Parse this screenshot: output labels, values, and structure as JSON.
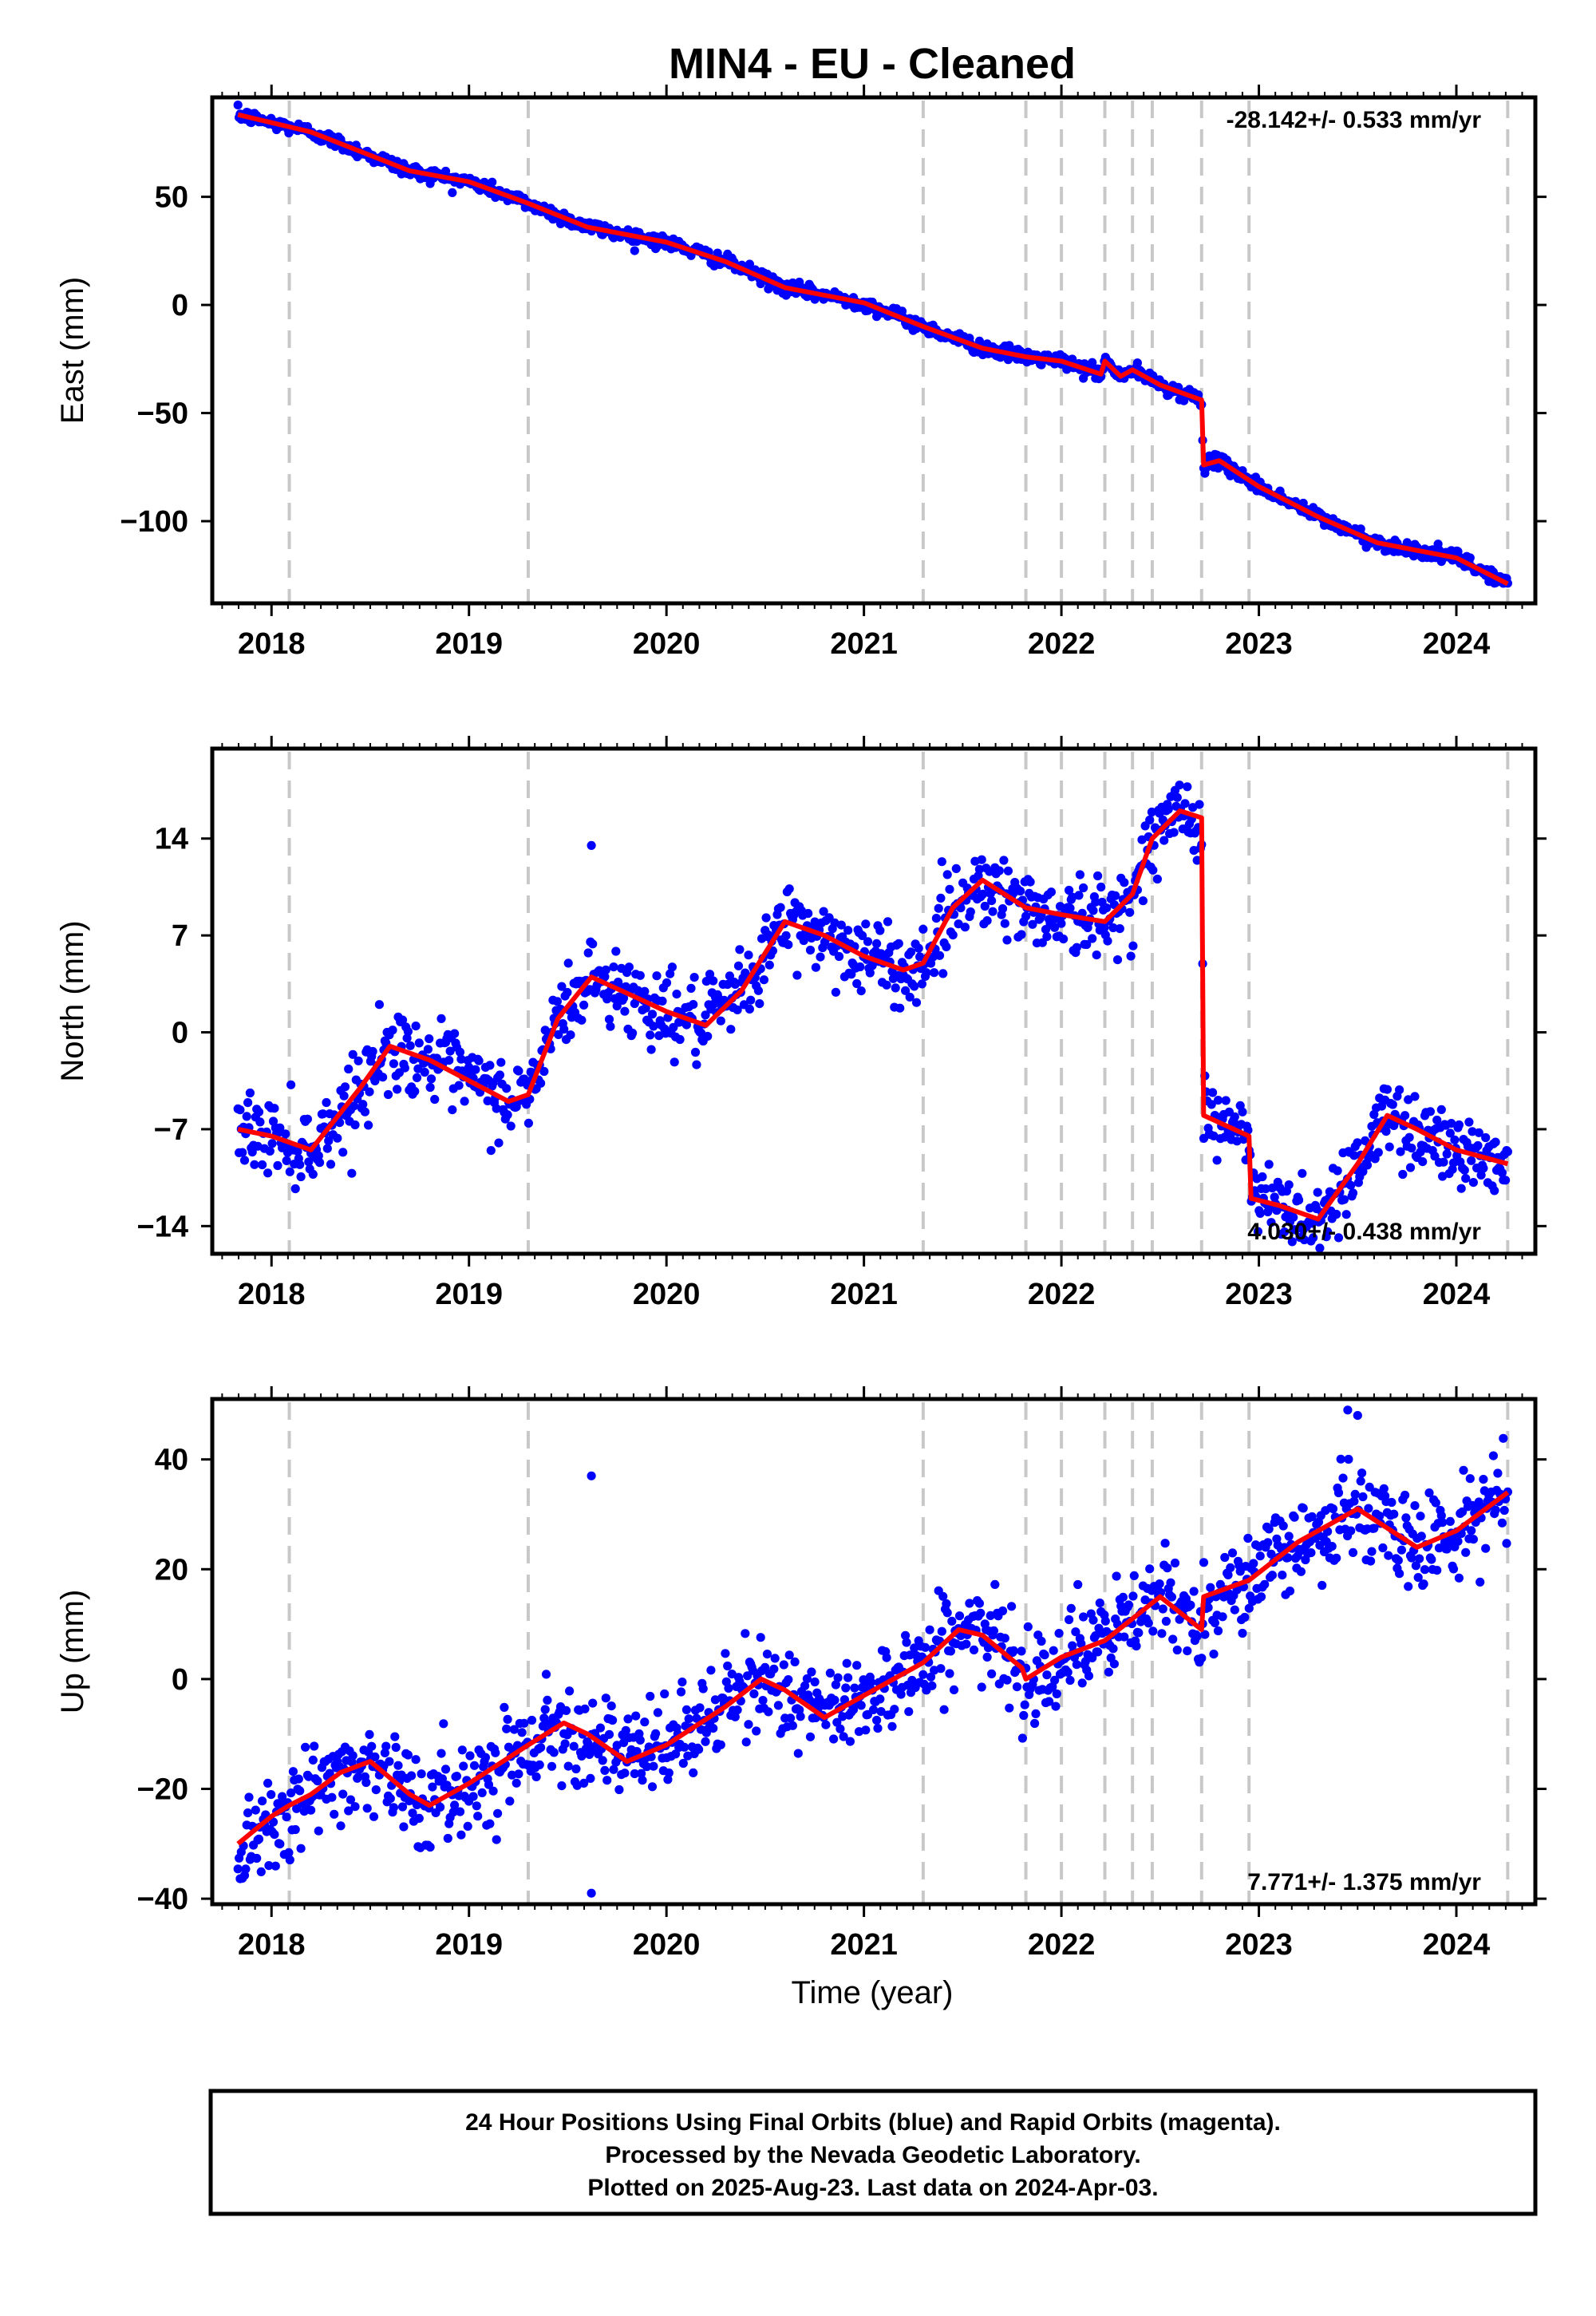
{
  "title": "MIN4  - EU - Cleaned",
  "colors": {
    "points": "#0000ff",
    "fit": "#ff0000",
    "events": "#c8c8c8",
    "frame": "#000000"
  },
  "x_axis": {
    "label": "Time (year)",
    "ticks": [
      2018,
      2019,
      2020,
      2021,
      2022,
      2023,
      2024
    ],
    "range": [
      2017.7,
      2024.4
    ]
  },
  "event_lines": [
    2018.09,
    2019.3,
    2021.3,
    2021.82,
    2022.0,
    2022.22,
    2022.36,
    2022.46,
    2022.71,
    2022.95,
    2024.26
  ],
  "chart_data": [
    {
      "type": "scatter",
      "ylabel": "East (mm)",
      "yticks": [
        -100,
        -50,
        0,
        50
      ],
      "ylim": [
        -138,
        96
      ],
      "rate_text": "-28.142+/- 0.533 mm/yr",
      "rate_position": "top-right",
      "noise": 1.6,
      "outliers": [],
      "fit": [
        [
          2017.83,
          88
        ],
        [
          2018.2,
          80
        ],
        [
          2018.7,
          62
        ],
        [
          2019.0,
          57
        ],
        [
          2019.3,
          47
        ],
        [
          2019.6,
          36
        ],
        [
          2020.0,
          29
        ],
        [
          2020.3,
          20
        ],
        [
          2020.6,
          8
        ],
        [
          2021.0,
          1
        ],
        [
          2021.3,
          -10
        ],
        [
          2021.6,
          -20
        ],
        [
          2021.82,
          -24
        ],
        [
          2022.0,
          -26
        ],
        [
          2022.2,
          -32
        ],
        [
          2022.22,
          -26
        ],
        [
          2022.3,
          -33
        ],
        [
          2022.36,
          -30
        ],
        [
          2022.5,
          -37
        ],
        [
          2022.71,
          -44
        ],
        [
          2022.72,
          -74
        ],
        [
          2022.8,
          -72
        ],
        [
          2023.0,
          -84
        ],
        [
          2023.3,
          -98
        ],
        [
          2023.6,
          -110
        ],
        [
          2024.0,
          -117
        ],
        [
          2024.26,
          -129
        ]
      ]
    },
    {
      "type": "scatter",
      "ylabel": "North (mm)",
      "yticks": [
        -14,
        -7,
        0,
        7,
        14
      ],
      "ylim": [
        -16,
        20.5
      ],
      "rate_text": "4.030+/- 0.438 mm/yr",
      "rate_position": "bottom-right",
      "noise": 1.4,
      "outliers": [
        [
          2019.62,
          13.5
        ]
      ],
      "fit": [
        [
          2017.83,
          -7
        ],
        [
          2018.0,
          -7.5
        ],
        [
          2018.2,
          -8.5
        ],
        [
          2018.45,
          -4
        ],
        [
          2018.6,
          -1
        ],
        [
          2018.8,
          -2
        ],
        [
          2019.0,
          -3.5
        ],
        [
          2019.2,
          -5
        ],
        [
          2019.3,
          -4.5
        ],
        [
          2019.45,
          1
        ],
        [
          2019.62,
          4
        ],
        [
          2019.85,
          2.5
        ],
        [
          2020.0,
          1.5
        ],
        [
          2020.2,
          0.5
        ],
        [
          2020.38,
          3
        ],
        [
          2020.6,
          8
        ],
        [
          2020.8,
          7
        ],
        [
          2021.0,
          5.5
        ],
        [
          2021.2,
          4.5
        ],
        [
          2021.3,
          5
        ],
        [
          2021.45,
          9
        ],
        [
          2021.6,
          11
        ],
        [
          2021.82,
          9
        ],
        [
          2022.0,
          8.5
        ],
        [
          2022.22,
          8
        ],
        [
          2022.36,
          10
        ],
        [
          2022.46,
          14
        ],
        [
          2022.6,
          16
        ],
        [
          2022.71,
          15.5
        ],
        [
          2022.72,
          -6
        ],
        [
          2022.95,
          -7.5
        ],
        [
          2022.96,
          -12
        ],
        [
          2023.1,
          -12.5
        ],
        [
          2023.3,
          -13.5
        ],
        [
          2023.5,
          -9.5
        ],
        [
          2023.65,
          -6
        ],
        [
          2023.8,
          -7
        ],
        [
          2024.0,
          -8.5
        ],
        [
          2024.26,
          -9.5
        ]
      ]
    },
    {
      "type": "scatter",
      "ylabel": "Up (mm)",
      "yticks": [
        -40,
        -20,
        0,
        20,
        40
      ],
      "ylim": [
        -41,
        51
      ],
      "rate_text": "7.771+/- 1.375 mm/yr",
      "rate_position": "bottom-right",
      "noise": 4.2,
      "outliers": [
        [
          2019.62,
          37
        ],
        [
          2019.62,
          -39
        ],
        [
          2023.5,
          48
        ],
        [
          2023.45,
          49
        ]
      ],
      "fit": [
        [
          2017.83,
          -30
        ],
        [
          2018.0,
          -25
        ],
        [
          2018.09,
          -23
        ],
        [
          2018.2,
          -21
        ],
        [
          2018.35,
          -17
        ],
        [
          2018.5,
          -15
        ],
        [
          2018.7,
          -21
        ],
        [
          2018.8,
          -23
        ],
        [
          2019.0,
          -19
        ],
        [
          2019.3,
          -12
        ],
        [
          2019.48,
          -8
        ],
        [
          2019.6,
          -10
        ],
        [
          2019.8,
          -15
        ],
        [
          2020.0,
          -12
        ],
        [
          2020.3,
          -5
        ],
        [
          2020.48,
          0
        ],
        [
          2020.6,
          -2
        ],
        [
          2020.8,
          -7
        ],
        [
          2021.0,
          -3
        ],
        [
          2021.3,
          3
        ],
        [
          2021.48,
          9
        ],
        [
          2021.6,
          8
        ],
        [
          2021.8,
          2
        ],
        [
          2021.82,
          0
        ],
        [
          2022.0,
          4
        ],
        [
          2022.22,
          7
        ],
        [
          2022.36,
          11
        ],
        [
          2022.5,
          15
        ],
        [
          2022.71,
          9
        ],
        [
          2022.72,
          15
        ],
        [
          2022.95,
          18
        ],
        [
          2023.2,
          25
        ],
        [
          2023.5,
          31
        ],
        [
          2023.8,
          24
        ],
        [
          2024.0,
          27
        ],
        [
          2024.26,
          34
        ]
      ]
    }
  ],
  "footer": {
    "line1": "24 Hour Positions Using Final Orbits (blue) and Rapid Orbits (magenta).",
    "line2": "Processed by the Nevada Geodetic Laboratory.",
    "line3": "Plotted on 2025-Aug-23. Last data on 2024-Apr-03."
  }
}
